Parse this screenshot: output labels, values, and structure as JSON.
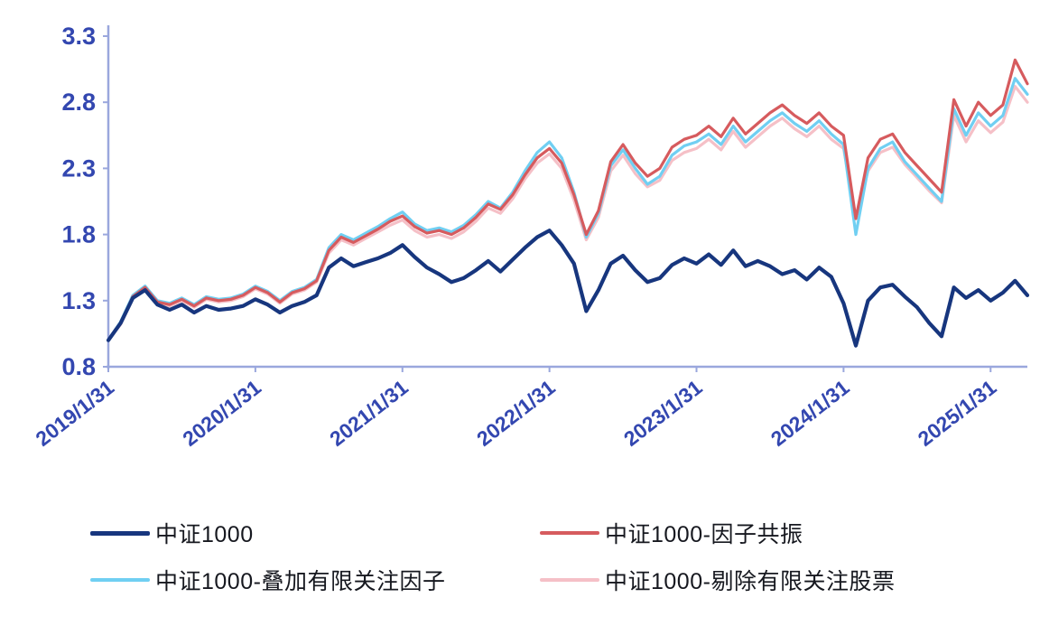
{
  "chart_data": {
    "type": "line",
    "title": "",
    "xlabel": "",
    "ylabel": "",
    "grid": false,
    "legend_position": "bottom",
    "ylim": [
      0.8,
      3.3
    ],
    "y_ticks": [
      0.8,
      1.3,
      1.8,
      2.3,
      2.8,
      3.3
    ],
    "y_tick_labels": [
      "0.8",
      "1.3",
      "1.8",
      "2.3",
      "2.8",
      "3.3"
    ],
    "x_tick_positions": [
      0,
      12,
      24,
      36,
      48,
      60,
      72
    ],
    "x_tick_labels": [
      "2019/1/31",
      "2020/1/31",
      "2021/1/31",
      "2022/1/31",
      "2023/1/31",
      "2024/1/31",
      "2025/1/31"
    ],
    "axis_color": "#9aa7dd",
    "tick_label_color": "#3347b0",
    "draw_order": [
      3,
      2,
      1,
      0
    ],
    "series": [
      {
        "name": "中证1000",
        "color": "#17367e",
        "values": [
          1.0,
          1.13,
          1.32,
          1.38,
          1.27,
          1.23,
          1.27,
          1.21,
          1.26,
          1.23,
          1.24,
          1.26,
          1.31,
          1.27,
          1.21,
          1.26,
          1.29,
          1.34,
          1.55,
          1.62,
          1.56,
          1.59,
          1.62,
          1.66,
          1.72,
          1.63,
          1.55,
          1.5,
          1.44,
          1.47,
          1.53,
          1.6,
          1.52,
          1.61,
          1.7,
          1.78,
          1.83,
          1.72,
          1.58,
          1.22,
          1.38,
          1.58,
          1.64,
          1.53,
          1.44,
          1.47,
          1.57,
          1.62,
          1.58,
          1.65,
          1.57,
          1.68,
          1.56,
          1.6,
          1.56,
          1.5,
          1.53,
          1.46,
          1.55,
          1.48,
          1.28,
          0.96,
          1.3,
          1.4,
          1.42,
          1.33,
          1.25,
          1.13,
          1.03,
          1.4,
          1.32,
          1.38,
          1.3,
          1.36,
          1.45,
          1.34
        ]
      },
      {
        "name": "中证1000-因子共振",
        "color": "#d65b5e",
        "values": [
          1.0,
          1.13,
          1.33,
          1.4,
          1.29,
          1.27,
          1.31,
          1.26,
          1.32,
          1.3,
          1.31,
          1.34,
          1.4,
          1.36,
          1.29,
          1.36,
          1.39,
          1.45,
          1.68,
          1.78,
          1.74,
          1.79,
          1.84,
          1.9,
          1.94,
          1.86,
          1.81,
          1.83,
          1.8,
          1.85,
          1.93,
          2.03,
          1.99,
          2.1,
          2.25,
          2.38,
          2.45,
          2.34,
          2.1,
          1.8,
          1.98,
          2.35,
          2.48,
          2.34,
          2.24,
          2.3,
          2.46,
          2.52,
          2.55,
          2.62,
          2.54,
          2.68,
          2.56,
          2.64,
          2.72,
          2.78,
          2.7,
          2.64,
          2.72,
          2.62,
          2.55,
          1.92,
          2.38,
          2.52,
          2.56,
          2.42,
          2.32,
          2.22,
          2.12,
          2.82,
          2.62,
          2.8,
          2.7,
          2.78,
          3.12,
          2.94
        ]
      },
      {
        "name": "中证1000-叠加有限关注因子",
        "color": "#70cff2",
        "values": [
          1.0,
          1.14,
          1.34,
          1.41,
          1.3,
          1.28,
          1.32,
          1.27,
          1.33,
          1.31,
          1.32,
          1.35,
          1.41,
          1.37,
          1.3,
          1.37,
          1.4,
          1.46,
          1.7,
          1.8,
          1.76,
          1.81,
          1.86,
          1.92,
          1.97,
          1.88,
          1.83,
          1.85,
          1.82,
          1.87,
          1.95,
          2.05,
          2.0,
          2.12,
          2.28,
          2.42,
          2.5,
          2.38,
          2.12,
          1.78,
          1.96,
          2.32,
          2.44,
          2.3,
          2.18,
          2.24,
          2.4,
          2.47,
          2.5,
          2.56,
          2.48,
          2.62,
          2.5,
          2.58,
          2.66,
          2.72,
          2.64,
          2.58,
          2.66,
          2.56,
          2.48,
          1.8,
          2.3,
          2.45,
          2.5,
          2.35,
          2.25,
          2.15,
          2.05,
          2.75,
          2.55,
          2.72,
          2.62,
          2.7,
          2.98,
          2.86
        ]
      },
      {
        "name": "中证1000-剔除有限关注股票",
        "color": "#f5c0c7",
        "values": [
          1.0,
          1.12,
          1.32,
          1.39,
          1.28,
          1.26,
          1.3,
          1.25,
          1.31,
          1.29,
          1.3,
          1.33,
          1.39,
          1.35,
          1.28,
          1.35,
          1.38,
          1.44,
          1.66,
          1.76,
          1.72,
          1.77,
          1.82,
          1.87,
          1.91,
          1.83,
          1.78,
          1.8,
          1.77,
          1.82,
          1.9,
          2.0,
          1.96,
          2.07,
          2.22,
          2.34,
          2.41,
          2.3,
          2.06,
          1.76,
          1.93,
          2.28,
          2.4,
          2.26,
          2.16,
          2.21,
          2.36,
          2.42,
          2.45,
          2.52,
          2.44,
          2.58,
          2.46,
          2.54,
          2.62,
          2.68,
          2.6,
          2.54,
          2.62,
          2.52,
          2.45,
          1.93,
          2.28,
          2.42,
          2.46,
          2.33,
          2.23,
          2.13,
          2.04,
          2.7,
          2.5,
          2.66,
          2.57,
          2.65,
          2.92,
          2.8
        ]
      }
    ]
  },
  "legend": {
    "items": [
      {
        "label": "中证1000"
      },
      {
        "label": "中证1000-因子共振"
      },
      {
        "label": "中证1000-叠加有限关注因子"
      },
      {
        "label": "中证1000-剔除有限关注股票"
      }
    ]
  }
}
